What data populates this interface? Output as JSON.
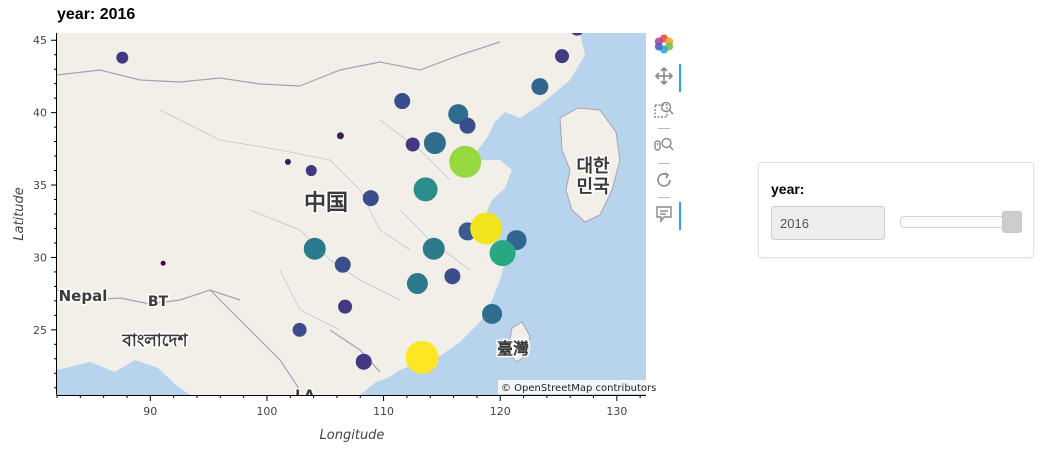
{
  "chart_data": {
    "type": "scatter",
    "title": "year: 2016",
    "xlabel": "Longitude",
    "ylabel": "Latitude",
    "xlim": [
      82,
      132.5
    ],
    "ylim": [
      20.5,
      45.5
    ],
    "xticks": [
      90,
      100,
      110,
      120,
      130
    ],
    "yticks": [
      25,
      30,
      35,
      40,
      45
    ],
    "grid": false,
    "colormap": "viridis",
    "background": "map tiles",
    "attribution": "© OpenStreetMap contributors",
    "map_labels": [
      "中国",
      "대한\n민국",
      "Nepal",
      "BT",
      "বাংলাদেশ",
      "臺灣",
      "LA"
    ],
    "points": [
      {
        "x": 87.6,
        "y": 43.8,
        "r": 6,
        "c": "#433982"
      },
      {
        "x": 101.8,
        "y": 36.6,
        "r": 3,
        "c": "#3f1b5d"
      },
      {
        "x": 103.8,
        "y": 36.0,
        "r": 5.5,
        "c": "#433982"
      },
      {
        "x": 106.3,
        "y": 38.4,
        "r": 3.5,
        "c": "#3f1b5d"
      },
      {
        "x": 91.1,
        "y": 29.6,
        "r": 2.5,
        "c": "#440154"
      },
      {
        "x": 104.1,
        "y": 30.6,
        "r": 11,
        "c": "#2b7b8d"
      },
      {
        "x": 106.5,
        "y": 29.5,
        "r": 8,
        "c": "#3b4e8c"
      },
      {
        "x": 106.7,
        "y": 26.6,
        "r": 7,
        "c": "#433982"
      },
      {
        "x": 102.8,
        "y": 25.0,
        "r": 7,
        "c": "#3e4a89"
      },
      {
        "x": 108.9,
        "y": 34.1,
        "r": 8,
        "c": "#3b4e8c"
      },
      {
        "x": 111.6,
        "y": 40.8,
        "r": 8,
        "c": "#3b4e8c"
      },
      {
        "x": 112.5,
        "y": 37.8,
        "r": 7,
        "c": "#433982"
      },
      {
        "x": 114.4,
        "y": 37.9,
        "r": 11,
        "c": "#2f6c8e"
      },
      {
        "x": 116.4,
        "y": 39.9,
        "r": 10,
        "c": "#2f6c8e"
      },
      {
        "x": 117.2,
        "y": 39.1,
        "r": 8,
        "c": "#3b4e8c"
      },
      {
        "x": 117.0,
        "y": 36.6,
        "r": 16,
        "c": "#95d840"
      },
      {
        "x": 113.6,
        "y": 34.7,
        "r": 12,
        "c": "#2b8e8c"
      },
      {
        "x": 117.2,
        "y": 31.8,
        "r": 9,
        "c": "#3b5d8d"
      },
      {
        "x": 118.8,
        "y": 32.0,
        "r": 16,
        "c": "#f2e51d"
      },
      {
        "x": 121.4,
        "y": 31.2,
        "r": 10,
        "c": "#31678e"
      },
      {
        "x": 120.2,
        "y": 30.3,
        "r": 13,
        "c": "#27a883"
      },
      {
        "x": 114.3,
        "y": 30.6,
        "r": 11,
        "c": "#2b7b8d"
      },
      {
        "x": 115.9,
        "y": 28.7,
        "r": 8,
        "c": "#3b4e8c"
      },
      {
        "x": 112.9,
        "y": 28.2,
        "r": 10.5,
        "c": "#2b7b8d"
      },
      {
        "x": 119.3,
        "y": 26.1,
        "r": 10,
        "c": "#2f6c8e"
      },
      {
        "x": 108.3,
        "y": 22.8,
        "r": 8,
        "c": "#433982"
      },
      {
        "x": 113.3,
        "y": 23.1,
        "r": 16.5,
        "c": "#fde725"
      },
      {
        "x": 110.3,
        "y": 20.0,
        "r": 5,
        "c": "#3f1b5d"
      },
      {
        "x": 123.4,
        "y": 41.8,
        "r": 8.5,
        "c": "#31678e"
      },
      {
        "x": 125.3,
        "y": 43.9,
        "r": 7,
        "c": "#433982"
      },
      {
        "x": 126.6,
        "y": 45.8,
        "r": 7,
        "c": "#433982"
      }
    ]
  },
  "widget": {
    "label": "year:",
    "value": "2016",
    "slider_fraction": 1.0
  },
  "toolbar": {
    "tools": [
      {
        "name": "bokeh-logo-icon"
      },
      {
        "name": "pan-tool-icon"
      },
      {
        "name": "box-zoom-tool-icon"
      },
      {
        "name": "wheel-zoom-tool-icon"
      },
      {
        "name": "reset-tool-icon"
      },
      {
        "name": "hover-tool-icon"
      }
    ]
  },
  "colors": {
    "water": "#b8d4ec",
    "land": "#f2efe9",
    "border": "#a8a0b4",
    "toolbar_active": "#26aae1"
  }
}
